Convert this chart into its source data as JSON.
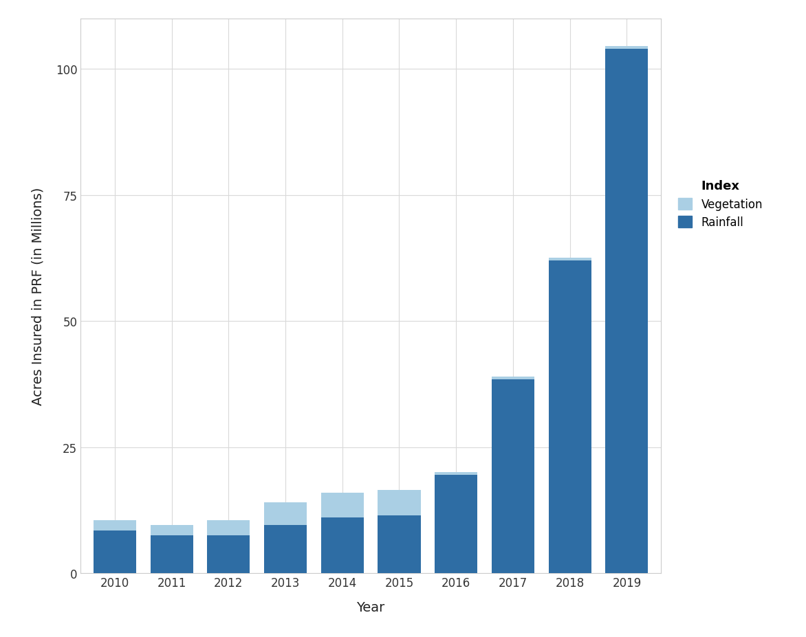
{
  "years": [
    2010,
    2011,
    2012,
    2013,
    2014,
    2015,
    2016,
    2017,
    2018,
    2019
  ],
  "rainfall": [
    8.5,
    7.5,
    7.5,
    9.5,
    11.0,
    11.5,
    19.5,
    38.5,
    62.0,
    104.0
  ],
  "vegetation": [
    2.0,
    2.0,
    3.0,
    4.5,
    5.0,
    5.0,
    0.5,
    0.5,
    0.5,
    0.5
  ],
  "rainfall_color": "#2e6da4",
  "vegetation_color": "#aacfe4",
  "background_color": "#ffffff",
  "panel_bg_color": "#ffffff",
  "grid_color": "#d9d9d9",
  "ylabel": "Acres Insured in PRF (in Millions)",
  "xlabel": "Year",
  "legend_title": "Index",
  "ylim": [
    0,
    110
  ],
  "yticks": [
    0,
    25,
    50,
    75,
    100
  ],
  "bar_width": 0.75,
  "axis_fontsize": 14,
  "tick_fontsize": 12,
  "legend_fontsize": 12,
  "legend_title_fontsize": 13
}
